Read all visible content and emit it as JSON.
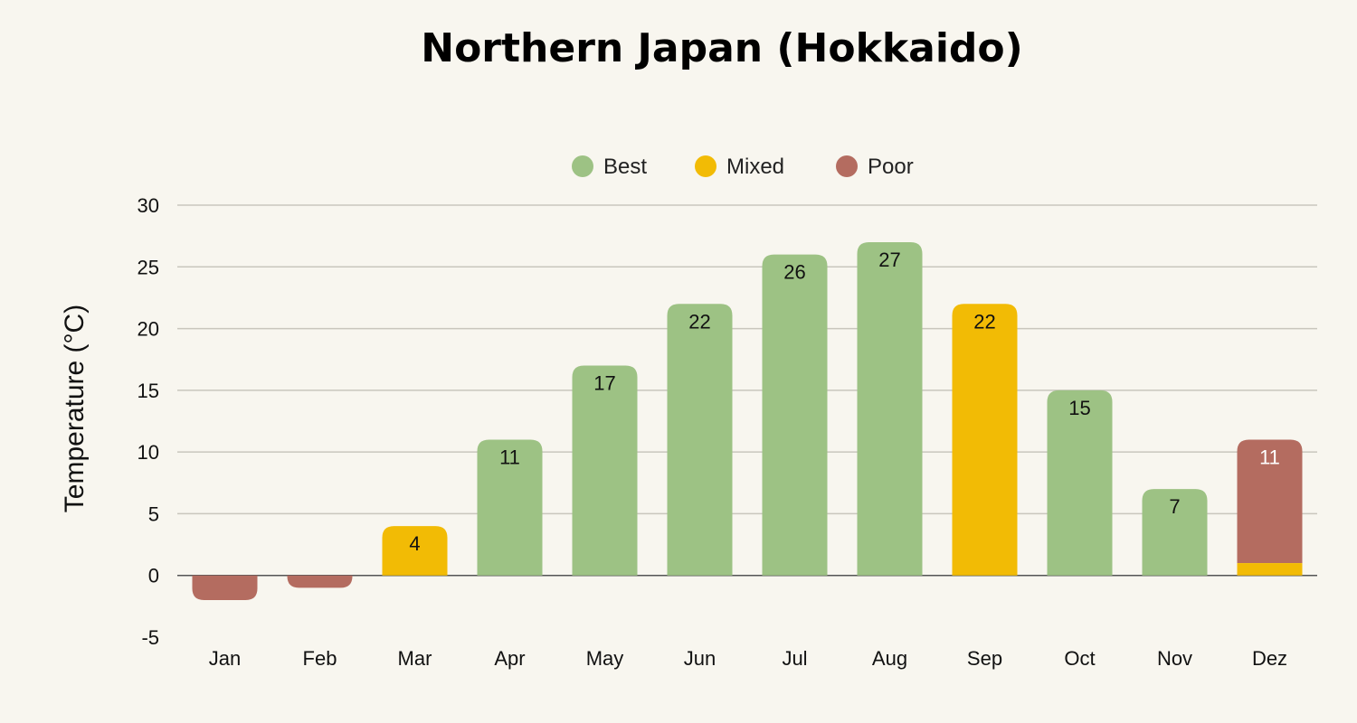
{
  "chart_data": {
    "type": "bar",
    "title": "Northern Japan (Hokkaido)",
    "xlabel": "",
    "ylabel": "Temperature (°C)",
    "ylim": [
      -5,
      30
    ],
    "yticks": [
      30,
      25,
      20,
      15,
      10,
      5,
      0,
      -5
    ],
    "grid": true,
    "legend_position": "top-center",
    "legend": [
      {
        "name": "Best",
        "color": "#9dc284"
      },
      {
        "name": "Mixed",
        "color": "#f2bb05"
      },
      {
        "name": "Poor",
        "color": "#b46c60"
      }
    ],
    "categories": [
      "Jan",
      "Feb",
      "Mar",
      "Apr",
      "May",
      "Jun",
      "Jul",
      "Aug",
      "Sep",
      "Oct",
      "Nov",
      "Dez"
    ],
    "bars": [
      {
        "category": "Jan",
        "segments": [
          {
            "value": -2,
            "rating": "Poor"
          }
        ],
        "label": ""
      },
      {
        "category": "Feb",
        "segments": [
          {
            "value": -1,
            "rating": "Poor"
          }
        ],
        "label": ""
      },
      {
        "category": "Mar",
        "segments": [
          {
            "value": 4,
            "rating": "Mixed"
          }
        ],
        "label": "4"
      },
      {
        "category": "Apr",
        "segments": [
          {
            "value": 11,
            "rating": "Best"
          }
        ],
        "label": "11"
      },
      {
        "category": "May",
        "segments": [
          {
            "value": 17,
            "rating": "Best"
          }
        ],
        "label": "17"
      },
      {
        "category": "Jun",
        "segments": [
          {
            "value": 22,
            "rating": "Best"
          }
        ],
        "label": "22"
      },
      {
        "category": "Jul",
        "segments": [
          {
            "value": 26,
            "rating": "Best"
          }
        ],
        "label": "26"
      },
      {
        "category": "Aug",
        "segments": [
          {
            "value": 27,
            "rating": "Best"
          }
        ],
        "label": "27"
      },
      {
        "category": "Sep",
        "segments": [
          {
            "value": 22,
            "rating": "Mixed"
          }
        ],
        "label": "22"
      },
      {
        "category": "Oct",
        "segments": [
          {
            "value": 15,
            "rating": "Best"
          }
        ],
        "label": "15"
      },
      {
        "category": "Nov",
        "segments": [
          {
            "value": 7,
            "rating": "Best"
          }
        ],
        "label": "7"
      },
      {
        "category": "Dez",
        "segments": [
          {
            "value": 1,
            "rating": "Mixed"
          },
          {
            "value": 11,
            "rating": "Poor"
          }
        ],
        "label": "11"
      }
    ]
  }
}
